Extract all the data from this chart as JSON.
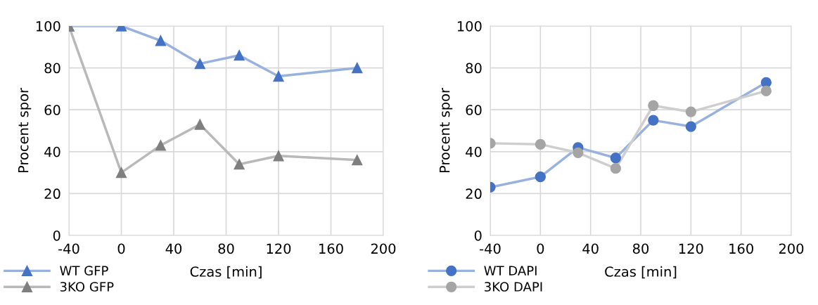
{
  "chart_data": [
    {
      "type": "line",
      "xlabel": "Czas [min]",
      "ylabel": "Procent spor",
      "x": [
        -40,
        0,
        30,
        60,
        90,
        120,
        180
      ],
      "xlim": [
        -40,
        200
      ],
      "xticks": [
        -40,
        0,
        40,
        80,
        120,
        160,
        200
      ],
      "ylim": [
        0,
        100
      ],
      "yticks": [
        0,
        20,
        40,
        60,
        80,
        100
      ],
      "grid": true,
      "legend": "bottom left",
      "marker": "triangle",
      "line_style": "solid",
      "series": [
        {
          "name": "WT GFP",
          "color": "#4472c4",
          "values": [
            100,
            100,
            93,
            82,
            86,
            76,
            80
          ]
        },
        {
          "name": "3KO GFP",
          "color": "#7f7f7f",
          "values": [
            100,
            30,
            43,
            53,
            34,
            38,
            36
          ]
        }
      ]
    },
    {
      "type": "line",
      "xlabel": "Czas [min]",
      "ylabel": "Procent spor",
      "x": [
        -40,
        0,
        30,
        60,
        90,
        120,
        180
      ],
      "xlim": [
        -40,
        200
      ],
      "xticks": [
        -40,
        0,
        40,
        80,
        120,
        160,
        200
      ],
      "ylim": [
        0,
        100
      ],
      "yticks": [
        0,
        20,
        40,
        60,
        80,
        100
      ],
      "grid": true,
      "legend": "bottom left",
      "marker": "circle",
      "line_style": "solid",
      "series": [
        {
          "name": "WT DAPI",
          "color": "#4472c4",
          "values": [
            23,
            28,
            42,
            37,
            55,
            52,
            73
          ]
        },
        {
          "name": "3KO DAPI",
          "color": "#a5a5a5",
          "values": [
            44,
            43.5,
            39.5,
            32,
            62,
            59,
            69
          ]
        }
      ]
    }
  ]
}
